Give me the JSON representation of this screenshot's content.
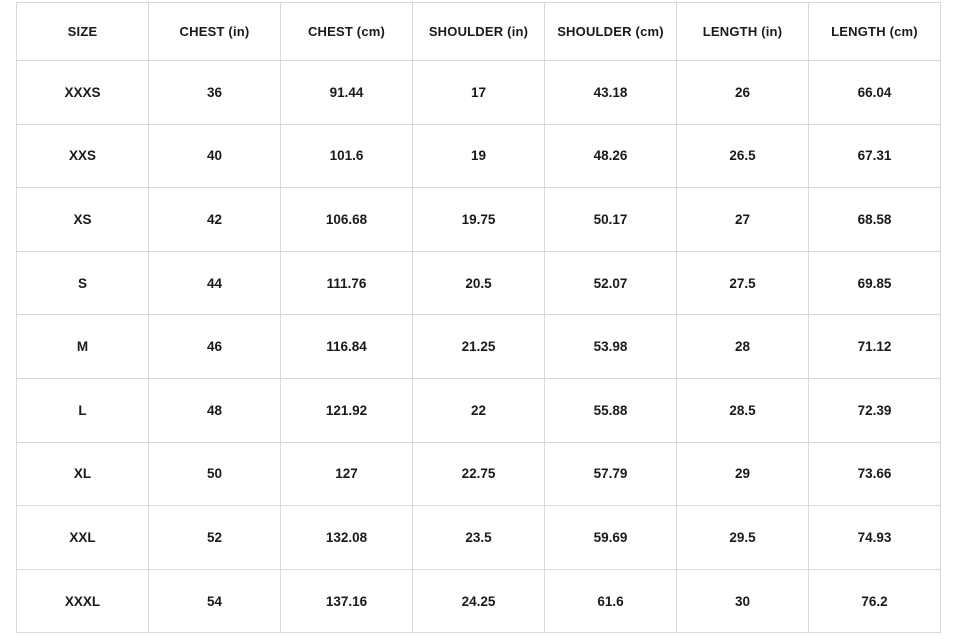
{
  "page": {
    "background": "#ffffff"
  },
  "colors": {
    "border": "#d9d9d9",
    "text": "#1a1a1a",
    "cell_background": "#ffffff"
  },
  "chart_data": {
    "type": "table",
    "columns": [
      "SIZE",
      "CHEST (in)",
      "CHEST (cm)",
      "SHOULDER (in)",
      "SHOULDER (cm)",
      "LENGTH (in)",
      "LENGTH (cm)"
    ],
    "rows": [
      [
        "XXXS",
        "36",
        "91.44",
        "17",
        "43.18",
        "26",
        "66.04"
      ],
      [
        "XXS",
        "40",
        "101.6",
        "19",
        "48.26",
        "26.5",
        "67.31"
      ],
      [
        "XS",
        "42",
        "106.68",
        "19.75",
        "50.17",
        "27",
        "68.58"
      ],
      [
        "S",
        "44",
        "111.76",
        "20.5",
        "52.07",
        "27.5",
        "69.85"
      ],
      [
        "M",
        "46",
        "116.84",
        "21.25",
        "53.98",
        "28",
        "71.12"
      ],
      [
        "L",
        "48",
        "121.92",
        "22",
        "55.88",
        "28.5",
        "72.39"
      ],
      [
        "XL",
        "50",
        "127",
        "22.75",
        "57.79",
        "29",
        "73.66"
      ],
      [
        "XXL",
        "52",
        "132.08",
        "23.5",
        "59.69",
        "29.5",
        "74.93"
      ],
      [
        "XXXL",
        "54",
        "137.16",
        "24.25",
        "61.6",
        "30",
        "76.2"
      ]
    ]
  }
}
